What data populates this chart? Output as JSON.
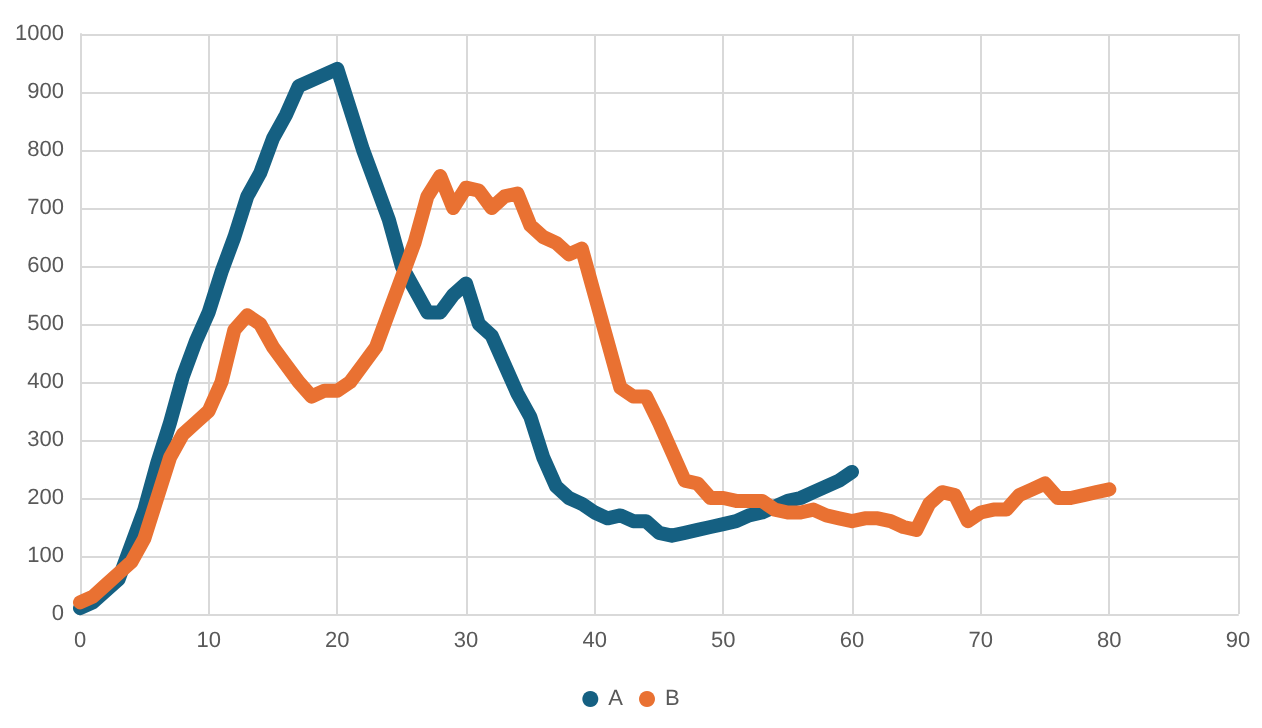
{
  "chart_data": {
    "type": "line",
    "x": [
      0,
      1,
      2,
      3,
      4,
      5,
      6,
      7,
      8,
      9,
      10,
      11,
      12,
      13,
      14,
      15,
      16,
      17,
      18,
      19,
      20,
      21,
      22,
      23,
      24,
      25,
      26,
      27,
      28,
      29,
      30,
      31,
      32,
      33,
      34,
      35,
      36,
      37,
      38,
      39,
      40,
      41,
      42,
      43,
      44,
      45,
      46,
      47,
      48,
      49,
      50,
      51,
      52,
      53,
      54,
      55,
      56,
      57,
      58,
      59,
      60,
      61,
      62,
      63,
      64,
      65,
      66,
      67,
      68,
      69,
      70,
      71,
      72,
      73,
      74,
      75,
      76,
      77,
      78,
      79,
      80
    ],
    "series": [
      {
        "name": "A",
        "color": "#156082",
        "values": [
          10,
          20,
          40,
          60,
          120,
          180,
          260,
          330,
          410,
          470,
          520,
          590,
          650,
          720,
          760,
          820,
          860,
          910,
          920,
          930,
          940,
          870,
          800,
          740,
          680,
          600,
          560,
          520,
          520,
          550,
          570,
          500,
          480,
          430,
          380,
          340,
          270,
          220,
          200,
          190,
          175,
          165,
          170,
          160,
          160,
          140,
          135,
          140,
          145,
          150,
          155,
          160,
          170,
          175,
          185,
          195,
          200,
          210,
          220,
          230,
          245,
          null,
          null,
          null,
          null,
          null,
          null,
          null,
          null,
          null,
          null,
          null,
          null,
          null,
          null,
          null,
          null,
          null,
          null,
          null,
          null
        ]
      },
      {
        "name": "B",
        "color": "#e97132",
        "values": [
          20,
          30,
          50,
          70,
          90,
          130,
          200,
          270,
          310,
          330,
          350,
          400,
          490,
          515,
          500,
          460,
          430,
          400,
          375,
          385,
          385,
          400,
          430,
          460,
          520,
          580,
          640,
          720,
          755,
          700,
          735,
          730,
          700,
          720,
          725,
          670,
          650,
          640,
          620,
          630,
          550,
          470,
          390,
          375,
          375,
          330,
          280,
          230,
          225,
          200,
          200,
          195,
          195,
          195,
          180,
          175,
          175,
          180,
          170,
          165,
          160,
          165,
          165,
          160,
          150,
          145,
          190,
          210,
          205,
          160,
          175,
          180,
          180,
          205,
          215,
          225,
          200,
          200,
          205,
          210,
          215
        ]
      }
    ],
    "xlim": [
      0,
      90
    ],
    "xticks": [
      0,
      10,
      20,
      30,
      40,
      50,
      60,
      70,
      80,
      90
    ],
    "ylim": [
      0,
      1000
    ],
    "yticks": [
      0,
      100,
      200,
      300,
      400,
      500,
      600,
      700,
      800,
      900,
      1000
    ],
    "grid": true,
    "legend": "bottom",
    "marker": "none",
    "line_style": "solid"
  }
}
